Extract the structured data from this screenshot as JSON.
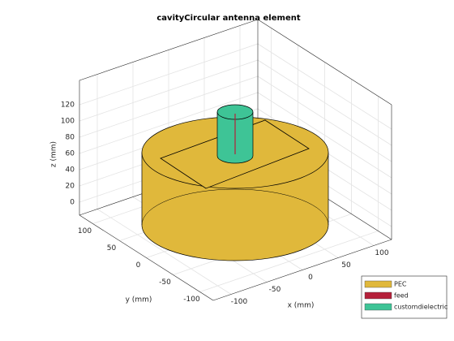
{
  "chart_data": {
    "type": "3d",
    "title": "cavityCircular antenna element",
    "xlabel": "x (mm)",
    "ylabel": "y (mm)",
    "zlabel": "z (mm)",
    "xlim": [
      -125,
      125
    ],
    "ylim": [
      -125,
      125
    ],
    "zlim": [
      -16,
      150
    ],
    "xticks": [
      -100,
      -50,
      0,
      50,
      100
    ],
    "yticks": [
      -100,
      -50,
      0,
      50,
      100
    ],
    "zticks": [
      0,
      20,
      40,
      60,
      80,
      100,
      120
    ],
    "grid": true,
    "legend": "lower right",
    "series": [
      {
        "name": "PEC",
        "color": "#e0b83b"
      },
      {
        "name": "feed",
        "color": "#b5203a"
      },
      {
        "name": "customdielectric",
        "color": "#3ec496"
      }
    ]
  }
}
